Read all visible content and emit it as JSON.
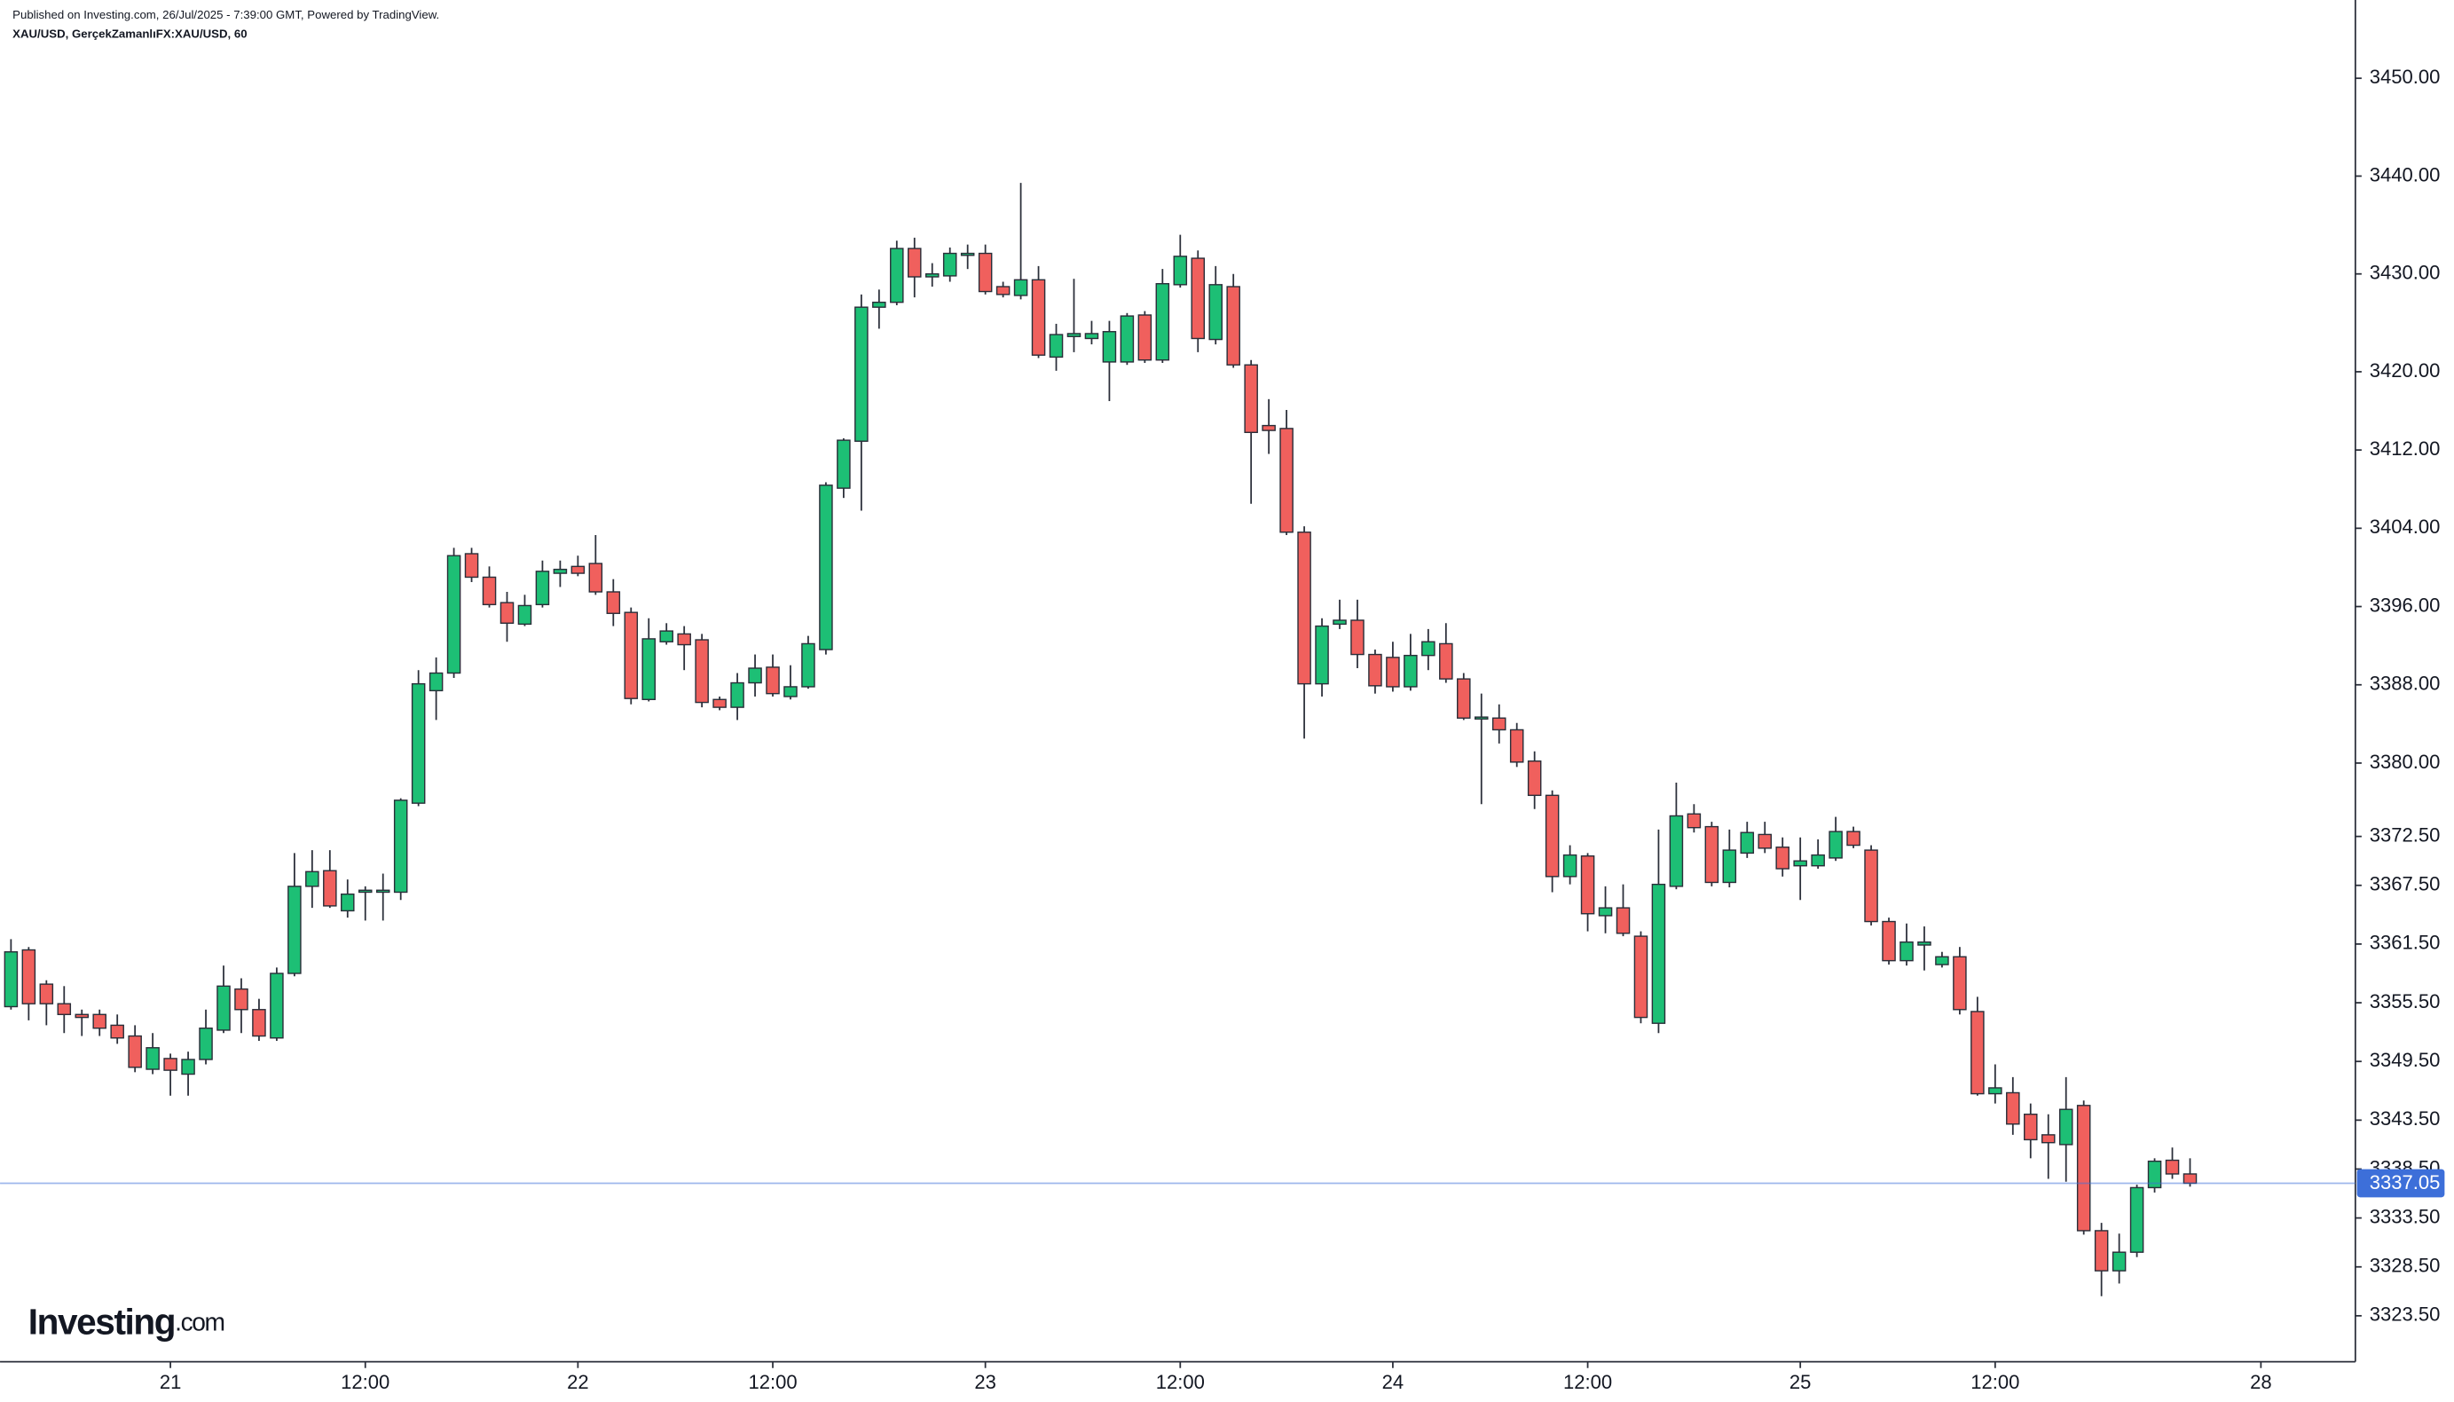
{
  "header": {
    "published": "Published on Investing.com, 26/Jul/2025 - 7:39:00 GMT, Powered by TradingView.",
    "symbol": "XAU/USD, GerçekZamanlıFX:XAU/USD, 60"
  },
  "logo": {
    "name": "Investing",
    "suffix": ".com"
  },
  "chart_data": {
    "type": "candlestick",
    "categories": [
      null,
      null,
      null,
      null,
      null,
      null,
      null,
      null,
      null,
      "21",
      null,
      null,
      null,
      null,
      null,
      null,
      null,
      null,
      null,
      null,
      "12:00",
      null,
      null,
      null,
      null,
      null,
      null,
      null,
      null,
      null,
      null,
      null,
      "22",
      null,
      null,
      null,
      null,
      null,
      null,
      null,
      null,
      null,
      null,
      "12:00",
      null,
      null,
      null,
      null,
      null,
      null,
      null,
      null,
      null,
      null,
      null,
      "23",
      null,
      null,
      null,
      null,
      null,
      null,
      null,
      null,
      null,
      null,
      "12:00",
      null,
      null,
      null,
      null,
      null,
      null,
      null,
      null,
      null,
      null,
      null,
      "24",
      null,
      null,
      null,
      null,
      null,
      null,
      null,
      null,
      null,
      null,
      "12:00",
      null,
      null,
      null,
      null,
      null,
      null,
      null,
      null,
      null,
      null,
      null,
      "25",
      null,
      null,
      null,
      null,
      null,
      null,
      null,
      null,
      null,
      null,
      "12:00",
      null,
      null,
      null,
      null,
      null,
      null,
      null,
      null,
      null,
      null,
      null,
      null,
      null,
      null,
      "28"
    ],
    "open": [
      3355.1,
      3360.9,
      3357.4,
      3355.4,
      3354.3,
      3354.3,
      3353.2,
      3352.1,
      3348.7,
      3349.8,
      3348.2,
      3349.7,
      3352.7,
      3356.9,
      3354.8,
      3351.9,
      3358.5,
      3367.4,
      3369.0,
      3364.9,
      3366.8,
      3366.8,
      3366.8,
      3375.9,
      3387.4,
      3389.2,
      3401.4,
      3399.0,
      3396.4,
      3394.2,
      3396.2,
      3399.4,
      3400.1,
      3400.4,
      3397.5,
      3395.4,
      3386.5,
      3392.4,
      3393.2,
      3392.6,
      3386.5,
      3385.7,
      3388.2,
      3389.8,
      3386.8,
      3387.8,
      3391.6,
      3408.1,
      3412.9,
      3426.6,
      3427.1,
      3432.6,
      3429.7,
      3429.8,
      3431.9,
      3432.1,
      3428.7,
      3427.8,
      3429.4,
      3421.5,
      3423.6,
      3423.4,
      3421.0,
      3421.0,
      3425.8,
      3421.2,
      3428.9,
      3431.6,
      3423.3,
      3428.7,
      3420.7,
      3414.5,
      3414.2,
      3403.6,
      3388.1,
      3394.2,
      3394.6,
      3391.1,
      3390.8,
      3387.8,
      3391.0,
      3392.2,
      3388.6,
      3384.6,
      3384.6,
      3383.4,
      3380.2,
      3376.7,
      3368.4,
      3370.5,
      3364.4,
      3365.2,
      3362.3,
      3353.4,
      3367.4,
      3374.8,
      3373.5,
      3367.8,
      3370.8,
      3372.7,
      3371.4,
      3369.5,
      3369.5,
      3370.3,
      3373.0,
      3371.1,
      3363.8,
      3359.8,
      3361.4,
      3359.4,
      3360.2,
      3354.6,
      3346.2,
      3346.3,
      3344.1,
      3342.0,
      3341.0,
      3345.0,
      3332.2,
      3328.1,
      3330.0,
      3336.6,
      3339.4,
      3338.0,
      null,
      null,
      null,
      null
    ],
    "high": [
      3362.0,
      3361.2,
      3357.8,
      3357.2,
      3354.8,
      3354.8,
      3354.3,
      3353.2,
      3352.4,
      3350.3,
      3350.5,
      3354.8,
      3359.3,
      3358.0,
      3355.9,
      3359.1,
      3370.8,
      3371.1,
      3371.1,
      3368.1,
      3367.4,
      3368.7,
      3376.4,
      3389.5,
      3390.8,
      3402.0,
      3402.0,
      3400.1,
      3397.5,
      3397.2,
      3400.7,
      3400.7,
      3401.2,
      3403.3,
      3398.8,
      3395.9,
      3394.8,
      3394.3,
      3394.0,
      3393.2,
      3386.8,
      3389.2,
      3391.1,
      3391.1,
      3390.0,
      3393.0,
      3408.7,
      3413.2,
      3427.9,
      3428.4,
      3433.4,
      3433.7,
      3431.1,
      3432.7,
      3433.0,
      3433.0,
      3429.2,
      3439.3,
      3430.8,
      3424.9,
      3429.5,
      3425.2,
      3425.2,
      3426.0,
      3426.2,
      3430.5,
      3434.0,
      3432.4,
      3430.8,
      3430.0,
      3421.2,
      3417.2,
      3416.1,
      3404.2,
      3394.8,
      3396.7,
      3396.7,
      3391.6,
      3392.4,
      3393.2,
      3393.7,
      3394.3,
      3389.2,
      3387.1,
      3386.0,
      3384.1,
      3381.2,
      3377.2,
      3371.6,
      3370.8,
      3367.4,
      3367.6,
      3362.8,
      3373.2,
      3378.0,
      3375.8,
      3374.0,
      3373.2,
      3374.0,
      3374.0,
      3372.4,
      3372.4,
      3372.2,
      3374.5,
      3373.5,
      3371.6,
      3364.2,
      3363.6,
      3363.3,
      3360.7,
      3361.2,
      3356.1,
      3349.2,
      3347.9,
      3345.2,
      3344.1,
      3347.9,
      3345.5,
      3333.0,
      3331.9,
      3336.9,
      3339.6,
      3340.7,
      3339.6,
      null,
      null,
      null,
      null
    ],
    "low": [
      3354.8,
      3353.7,
      3353.2,
      3352.4,
      3352.1,
      3352.1,
      3351.3,
      3348.4,
      3348.2,
      3346.0,
      3346.0,
      3349.2,
      3352.4,
      3352.4,
      3351.6,
      3351.6,
      3358.2,
      3365.2,
      3365.2,
      3364.2,
      3363.9,
      3363.9,
      3366.0,
      3375.6,
      3384.4,
      3388.7,
      3398.5,
      3395.9,
      3392.4,
      3394.0,
      3395.9,
      3398.0,
      3399.1,
      3397.2,
      3394.0,
      3386.0,
      3386.3,
      3392.1,
      3389.5,
      3385.7,
      3385.4,
      3384.4,
      3386.8,
      3386.8,
      3386.5,
      3387.6,
      3391.1,
      3407.1,
      3405.8,
      3424.4,
      3426.8,
      3427.6,
      3428.7,
      3429.2,
      3430.5,
      3427.9,
      3427.6,
      3427.4,
      3421.4,
      3420.1,
      3422.0,
      3422.8,
      3417.0,
      3420.7,
      3420.9,
      3420.9,
      3428.6,
      3422.0,
      3422.8,
      3420.4,
      3406.5,
      3411.6,
      3403.3,
      3382.5,
      3386.8,
      3393.7,
      3389.7,
      3387.1,
      3387.3,
      3387.4,
      3389.5,
      3388.2,
      3384.4,
      3375.8,
      3382.0,
      3379.6,
      3375.3,
      3366.8,
      3367.6,
      3362.8,
      3362.6,
      3362.3,
      3353.4,
      3352.4,
      3367.1,
      3372.9,
      3367.4,
      3367.3,
      3370.3,
      3370.8,
      3368.4,
      3366.0,
      3369.2,
      3370.0,
      3371.3,
      3363.4,
      3359.4,
      3359.3,
      3358.8,
      3359.1,
      3354.3,
      3346.0,
      3345.2,
      3342.0,
      3339.6,
      3337.5,
      3337.2,
      3331.8,
      3325.5,
      3326.8,
      3329.5,
      3336.1,
      3337.5,
      3336.7,
      null,
      null,
      null,
      null
    ],
    "close": [
      3360.7,
      3355.4,
      3355.4,
      3354.3,
      3354.0,
      3352.9,
      3351.9,
      3348.9,
      3350.9,
      3348.6,
      3349.7,
      3352.9,
      3357.2,
      3354.8,
      3352.1,
      3358.5,
      3367.4,
      3368.9,
      3365.4,
      3366.6,
      3367.0,
      3367.0,
      3376.2,
      3388.1,
      3389.2,
      3401.2,
      3399.0,
      3396.2,
      3394.3,
      3396.1,
      3399.6,
      3399.8,
      3399.4,
      3397.5,
      3395.3,
      3386.6,
      3392.7,
      3393.5,
      3392.1,
      3386.2,
      3385.7,
      3388.2,
      3389.7,
      3387.1,
      3387.8,
      3392.2,
      3408.4,
      3413.0,
      3426.6,
      3427.1,
      3432.6,
      3429.7,
      3430.0,
      3432.1,
      3432.1,
      3428.2,
      3427.9,
      3429.4,
      3421.7,
      3423.8,
      3423.9,
      3423.9,
      3424.1,
      3425.7,
      3421.2,
      3429.0,
      3431.8,
      3423.4,
      3428.9,
      3420.7,
      3413.8,
      3414.0,
      3403.6,
      3388.1,
      3394.0,
      3394.6,
      3391.1,
      3387.9,
      3387.8,
      3391.0,
      3392.4,
      3388.6,
      3384.6,
      3384.7,
      3383.4,
      3380.1,
      3376.7,
      3368.4,
      3370.6,
      3364.6,
      3365.2,
      3362.6,
      3354.0,
      3367.6,
      3374.6,
      3373.4,
      3367.8,
      3371.1,
      3372.9,
      3371.3,
      3369.2,
      3370.0,
      3370.6,
      3373.0,
      3371.6,
      3363.8,
      3359.8,
      3361.7,
      3361.7,
      3360.2,
      3354.8,
      3346.2,
      3346.8,
      3343.1,
      3341.5,
      3341.2,
      3344.6,
      3332.2,
      3328.1,
      3330.0,
      3336.6,
      3339.3,
      3338.0,
      3337.05,
      null,
      null,
      null,
      null
    ],
    "up_color": "#1dbf75",
    "down_color": "#f0605d",
    "wick_color": "#2a2e39",
    "price_line_color": "#3d6fd9",
    "ylim": [
      3318.8,
      3458
    ],
    "yticks": [
      {
        "value": 3450,
        "label": "3450.00"
      },
      {
        "value": 3440,
        "label": "3440.00"
      },
      {
        "value": 3430,
        "label": "3430.00"
      },
      {
        "value": 3420,
        "label": "3420.00"
      },
      {
        "value": 3412,
        "label": "3412.00"
      },
      {
        "value": 3404,
        "label": "3404.00"
      },
      {
        "value": 3396,
        "label": "3396.00"
      },
      {
        "value": 3388,
        "label": "3388.00"
      },
      {
        "value": 3380,
        "label": "3380.00"
      },
      {
        "value": 3372.5,
        "label": "3372.50"
      },
      {
        "value": 3367.5,
        "label": "3367.50"
      },
      {
        "value": 3361.5,
        "label": "3361.50"
      },
      {
        "value": 3355.5,
        "label": "3355.50"
      },
      {
        "value": 3349.5,
        "label": "3349.50"
      },
      {
        "value": 3343.5,
        "label": "3343.50"
      },
      {
        "value": 3338.5,
        "label": "3338.50"
      },
      {
        "value": 3333.5,
        "label": "3333.50"
      },
      {
        "value": 3328.5,
        "label": "3328.50"
      },
      {
        "value": 3323.5,
        "label": "3323.50"
      }
    ],
    "grid": false
  }
}
